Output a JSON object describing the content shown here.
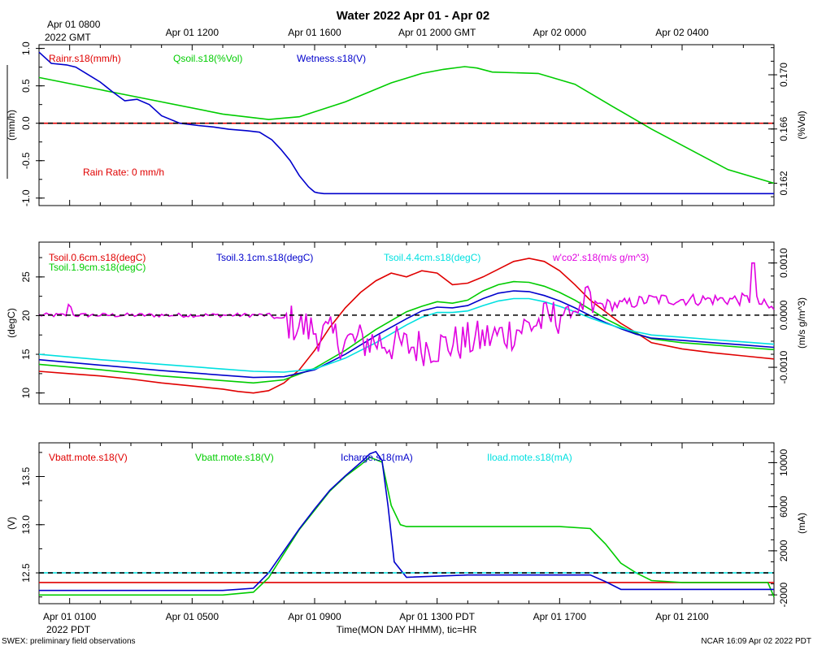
{
  "title": "Water 2022 Apr 01 - Apr 02",
  "top_axis": {
    "first_label_line1": "Apr 01 0800",
    "first_label_line2": "2022 GMT",
    "labels": [
      "Apr 01 1200",
      "Apr 01 1600",
      "Apr 01 2000 GMT",
      "Apr 02 0000",
      "Apr 02 0400"
    ]
  },
  "bottom_axis": {
    "labels": [
      "Apr 01 0100",
      "Apr 01 0500",
      "Apr 01 0900",
      "Apr 01 1300 PDT",
      "Apr 01 1700",
      "Apr 01 2100"
    ],
    "year_label": "2022 PDT",
    "axis_title": "Time(MON DAY HHMM), tic=HR"
  },
  "footer": {
    "left": "SWEX: preliminary field observations",
    "right": "NCAR 16:09 Apr 02 2022 PDT"
  },
  "colors": {
    "red": "#e00000",
    "green": "#00cc00",
    "blue": "#0000cc",
    "cyan": "#00e0e0",
    "magenta": "#e000e0",
    "black": "#000000"
  },
  "chart_data": [
    {
      "type": "line",
      "panel": "water",
      "x_unit": "hours since Apr 01 0000 PDT",
      "xlim": [
        0,
        24
      ],
      "ylabel": "(mm/h)",
      "ylim": [
        -1.1,
        1.05
      ],
      "yticks": [
        -1.0,
        -0.5,
        0.0,
        0.5,
        1.0
      ],
      "ytick_labels": [
        "-1.0",
        "-0.5",
        "0.0",
        "0.5",
        "1.0"
      ],
      "y2label": "(%Vol)",
      "y2lim": [
        0.16035,
        0.17222
      ],
      "y2ticks": [
        0.162,
        0.166,
        0.17
      ],
      "y2tick_labels": [
        "0.162",
        "0.166",
        "0.170"
      ],
      "reference_line": 0.0,
      "annotation": "Rain Rate: 0 mm/h",
      "series": [
        {
          "name": "Rainr.s18(mm/h)",
          "color": "red",
          "axis": "left",
          "x": [
            0,
            24
          ],
          "y": [
            0,
            0
          ]
        },
        {
          "name": "Qsoil.s18(%Vol)",
          "color": "green",
          "axis": "right",
          "x": [
            0,
            2,
            4,
            6,
            7.5,
            8.5,
            10,
            11.5,
            12.5,
            13.2,
            13.9,
            14.3,
            14.8,
            16.3,
            17.5,
            18.7,
            20,
            21.5,
            22.5,
            24
          ],
          "y": [
            0.1698,
            0.1689,
            0.168,
            0.1671,
            0.1667,
            0.1669,
            0.168,
            0.1694,
            0.1701,
            0.1704,
            0.1706,
            0.1705,
            0.1702,
            0.1701,
            0.1693,
            0.1677,
            0.166,
            0.1642,
            0.163,
            0.162
          ]
        },
        {
          "name": "Wetness.s18(V)",
          "color": "blue",
          "axis": "left",
          "x": [
            0,
            0.4,
            0.9,
            1.2,
            1.6,
            2.0,
            2.4,
            2.8,
            3.2,
            3.6,
            4.0,
            4.6,
            5.2,
            5.7,
            6.2,
            6.8,
            7.2,
            7.6,
            7.9,
            8.2,
            8.5,
            8.8,
            9.0,
            9.1,
            9.3,
            12,
            16,
            20,
            24
          ],
          "y": [
            0.95,
            0.8,
            0.78,
            0.75,
            0.65,
            0.55,
            0.42,
            0.3,
            0.32,
            0.25,
            0.1,
            0.0,
            -0.03,
            -0.05,
            -0.08,
            -0.1,
            -0.12,
            -0.22,
            -0.35,
            -0.5,
            -0.7,
            -0.85,
            -0.92,
            -0.93,
            -0.94,
            -0.94,
            -0.94,
            -0.94,
            -0.94
          ]
        }
      ]
    },
    {
      "type": "line",
      "panel": "soil-temperature",
      "x_unit": "hours since Apr 01 0000 PDT",
      "xlim": [
        0,
        24
      ],
      "ylabel": "(degC)",
      "ylim": [
        8.6,
        29.5
      ],
      "yticks": [
        10,
        15,
        20,
        25
      ],
      "ytick_labels": [
        "10",
        "15",
        "20",
        "25"
      ],
      "y2label": "(m/s g/m^3)",
      "y2lim": [
        -0.0017,
        0.0014
      ],
      "y2ticks": [
        -0.001,
        0.0,
        0.001
      ],
      "y2tick_labels": [
        "-0.0010",
        "0.0000",
        "0.0010"
      ],
      "reference_line_y2": 0.0,
      "series": [
        {
          "name": "Tsoil.0.6cm.s18(degC)",
          "color": "red",
          "axis": "left",
          "x": [
            0,
            1,
            2,
            3,
            4,
            5,
            6,
            6.5,
            7,
            7.5,
            8,
            8.5,
            9,
            9.5,
            10,
            10.5,
            11,
            11.5,
            12,
            12.5,
            13,
            13.5,
            14,
            14.5,
            15,
            15.5,
            16,
            16.5,
            17,
            17.5,
            18,
            18.5,
            19,
            19.5,
            20,
            21,
            22,
            23,
            24
          ],
          "y": [
            12.8,
            12.5,
            12.2,
            11.8,
            11.3,
            10.9,
            10.5,
            10.2,
            10.0,
            10.3,
            11.3,
            13.0,
            15.5,
            18.5,
            21.0,
            23.0,
            24.5,
            25.5,
            25.0,
            25.8,
            25.5,
            24.0,
            24.2,
            25.0,
            26.0,
            27.0,
            27.4,
            27.0,
            25.8,
            24.0,
            22.0,
            20.5,
            19.0,
            17.8,
            16.5,
            15.7,
            15.2,
            14.8,
            14.4
          ]
        },
        {
          "name": "Tsoil.1.9cm.s18(degC)",
          "color": "green",
          "axis": "left",
          "x": [
            0,
            2,
            4,
            6,
            7,
            8,
            9,
            10,
            11,
            12,
            12.5,
            13,
            13.5,
            14,
            14.5,
            15,
            15.5,
            16,
            16.5,
            17,
            17.5,
            18,
            18.5,
            19,
            19.5,
            20,
            21,
            22,
            23,
            24
          ],
          "y": [
            13.7,
            13.0,
            12.2,
            11.6,
            11.3,
            11.7,
            13.2,
            15.5,
            18.2,
            20.5,
            21.2,
            21.8,
            21.6,
            22.0,
            23.2,
            24.0,
            24.4,
            24.3,
            23.8,
            23.0,
            22.0,
            20.8,
            19.6,
            18.6,
            17.7,
            17.0,
            16.5,
            16.2,
            15.9,
            15.6
          ]
        },
        {
          "name": "Tsoil.3.1cm.s18(degC)",
          "color": "blue",
          "axis": "left",
          "x": [
            0,
            2,
            4,
            6,
            7,
            8,
            9,
            10,
            11,
            12,
            12.5,
            13,
            13.5,
            14,
            14.5,
            15,
            15.5,
            16,
            16.5,
            17,
            17.5,
            18,
            18.5,
            19,
            19.5,
            20,
            21,
            22,
            23,
            24
          ],
          "y": [
            14.3,
            13.6,
            12.9,
            12.3,
            12.0,
            12.1,
            13.0,
            15.0,
            17.4,
            19.6,
            20.6,
            21.1,
            21.0,
            21.3,
            22.2,
            22.9,
            23.2,
            23.1,
            22.6,
            21.9,
            21.0,
            20.0,
            19.1,
            18.3,
            17.6,
            17.1,
            16.8,
            16.5,
            16.2,
            15.9
          ]
        },
        {
          "name": "Tsoil.4.4cm.s18(degC)",
          "color": "cyan",
          "axis": "left",
          "x": [
            0,
            2,
            4,
            6,
            7,
            8,
            9,
            10,
            11,
            12,
            12.5,
            13,
            13.5,
            14,
            14.5,
            15,
            15.5,
            16,
            16.5,
            17,
            17.5,
            18,
            18.5,
            19,
            19.5,
            20,
            21,
            22,
            23,
            24
          ],
          "y": [
            15.0,
            14.3,
            13.7,
            13.1,
            12.8,
            12.7,
            13.1,
            14.5,
            16.5,
            18.8,
            19.8,
            20.4,
            20.4,
            20.6,
            21.3,
            21.9,
            22.2,
            22.2,
            21.8,
            21.2,
            20.5,
            19.7,
            19.0,
            18.4,
            17.9,
            17.5,
            17.2,
            16.9,
            16.6,
            16.3
          ]
        },
        {
          "name": "w'co2'.s18(m/s g/m^3)",
          "color": "magenta",
          "axis": "right",
          "noisy": true,
          "x": [
            0,
            1,
            2,
            3,
            4,
            5,
            6,
            7,
            7.5,
            8,
            8.5,
            9,
            9.5,
            10,
            11,
            12,
            13,
            14,
            15,
            15.5,
            16,
            16.5,
            17,
            17.5,
            18,
            19,
            20,
            21,
            22,
            23,
            23.3,
            24
          ],
          "y": [
            0.0,
            0.0,
            0.0,
            0.0,
            0.0,
            0.0,
            0.0,
            0.0,
            0.0,
            -0.0001,
            -0.0002,
            -0.0003,
            -0.0004,
            -0.0005,
            -0.0005,
            -0.0006,
            -0.0006,
            -0.0005,
            -0.0004,
            -0.0003,
            -0.0002,
            -0.0001,
            0.0,
            0.0001,
            0.0002,
            0.0002,
            0.0003,
            0.0003,
            0.0003,
            0.0003,
            0.0003,
            0.0001
          ]
        }
      ]
    },
    {
      "type": "line",
      "panel": "power",
      "x_unit": "hours since Apr 01 0000 PDT",
      "xlim": [
        0,
        24
      ],
      "ylabel": "(V)",
      "ylim": [
        12.18,
        13.85
      ],
      "yticks": [
        12.5,
        13.0,
        13.5
      ],
      "ytick_labels": [
        "12.5",
        "13.0",
        "13.5"
      ],
      "y2label": "(mA)",
      "y2lim": [
        -2800,
        11800
      ],
      "y2ticks": [
        -2000,
        2000,
        6000,
        10000
      ],
      "y2tick_labels": [
        "-2000",
        "2000",
        "6000",
        "10000"
      ],
      "reference_line_y2": 0,
      "series": [
        {
          "name": "Vbatt.mote.s18(V)",
          "color": "red",
          "axis": "left",
          "x": [
            0,
            24
          ],
          "y": [
            12.4,
            12.4
          ]
        },
        {
          "name": "Vbatt.mote.s18(V)",
          "color": "green",
          "axis": "left",
          "x": [
            0,
            2,
            4,
            6,
            7,
            7.5,
            8,
            8.5,
            9,
            9.5,
            10,
            10.5,
            10.8,
            11.2,
            11.5,
            11.8,
            12,
            13,
            14,
            15,
            16,
            17,
            18,
            18.5,
            19,
            19.5,
            20,
            21,
            22,
            23,
            23.8,
            24
          ],
          "y": [
            12.27,
            12.27,
            12.27,
            12.27,
            12.3,
            12.45,
            12.7,
            12.95,
            13.15,
            13.35,
            13.5,
            13.62,
            13.7,
            13.65,
            13.2,
            13.0,
            12.98,
            12.98,
            12.98,
            12.98,
            12.98,
            12.98,
            12.96,
            12.8,
            12.6,
            12.5,
            12.42,
            12.4,
            12.4,
            12.4,
            12.4,
            12.25
          ]
        },
        {
          "name": "Icharge.s18(mA)",
          "color": "blue",
          "axis": "right",
          "x": [
            0,
            2,
            4,
            6,
            7,
            7.5,
            8,
            8.5,
            9,
            9.5,
            10,
            10.5,
            10.8,
            11.0,
            11.2,
            11.4,
            11.6,
            12,
            14,
            16,
            18,
            18.5,
            19,
            20,
            22,
            24
          ],
          "y": [
            -1600,
            -1600,
            -1600,
            -1600,
            -1400,
            0,
            2000,
            4000,
            5800,
            7500,
            8800,
            10000,
            10800,
            11000,
            10200,
            6000,
            1000,
            -400,
            -200,
            -200,
            -200,
            -800,
            -1500,
            -1500,
            -1500,
            -1500
          ]
        },
        {
          "name": "Iload.mote.s18(mA)",
          "color": "cyan",
          "axis": "right",
          "x": [
            0,
            24
          ],
          "y": [
            0,
            0
          ]
        }
      ]
    }
  ],
  "legend_labels": {
    "p1": [
      "Rainr.s18(mm/h)",
      "Qsoil.s18(%Vol)",
      "Wetness.s18(V)"
    ],
    "p2": [
      "Tsoil.0.6cm.s18(degC)",
      "Tsoil.1.9cm.s18(degC)",
      "Tsoil.3.1cm.s18(degC)",
      "Tsoil.4.4cm.s18(degC)",
      "w'co2'.s18(m/s g/m^3)"
    ],
    "p3": [
      "Vbatt.mote.s18(V)",
      "Vbatt.mote.s18(V)",
      "Icharge.s18(mA)",
      "Iload.mote.s18(mA)"
    ]
  }
}
